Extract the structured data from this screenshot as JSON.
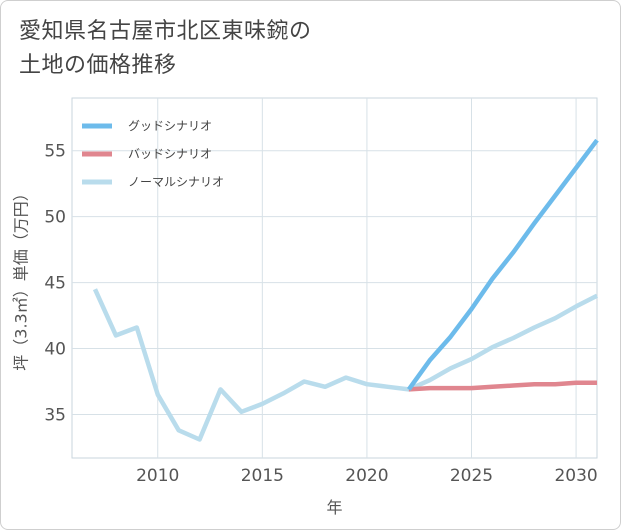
{
  "title": {
    "line1": "愛知県名古屋市北区東味鋺の",
    "line2": "土地の価格推移"
  },
  "chart_data": {
    "type": "line",
    "xlabel": "年",
    "ylabel": "坪（3.3㎡）単価（万円）",
    "xlim": [
      2005.9,
      2031
    ],
    "ylim": [
      31.7,
      59
    ],
    "xticks": [
      2010,
      2015,
      2020,
      2025,
      2030
    ],
    "yticks": [
      35,
      40,
      45,
      50,
      55
    ],
    "legend_position": "top-left",
    "grid": true,
    "series": [
      {
        "name": "グッドシナリオ",
        "color": "#6dbbeb",
        "x": [
          2022,
          2023,
          2024,
          2025,
          2026,
          2027,
          2028,
          2029,
          2030,
          2031
        ],
        "y": [
          36.9,
          39.1,
          40.9,
          43.0,
          45.3,
          47.3,
          49.5,
          51.6,
          53.7,
          55.8
        ]
      },
      {
        "name": "バッドシナリオ",
        "color": "#e0868f",
        "x": [
          2022,
          2023,
          2024,
          2025,
          2026,
          2027,
          2028,
          2029,
          2030,
          2031
        ],
        "y": [
          36.9,
          37.0,
          37.0,
          37.0,
          37.1,
          37.2,
          37.3,
          37.3,
          37.4,
          37.4
        ]
      },
      {
        "name": "ノーマルシナリオ",
        "color": "#b9dcec",
        "x": [
          2007,
          2008,
          2009,
          2010,
          2011,
          2012,
          2013,
          2014,
          2015,
          2016,
          2017,
          2018,
          2019,
          2020,
          2021,
          2022,
          2023,
          2024,
          2025,
          2026,
          2027,
          2028,
          2029,
          2030,
          2031
        ],
        "y": [
          44.5,
          41.0,
          41.6,
          36.5,
          33.8,
          33.1,
          36.9,
          35.2,
          35.8,
          36.6,
          37.5,
          37.1,
          37.8,
          37.3,
          37.1,
          36.9,
          37.6,
          38.5,
          39.2,
          40.1,
          40.8,
          41.6,
          42.3,
          43.2,
          44.0
        ]
      }
    ]
  }
}
